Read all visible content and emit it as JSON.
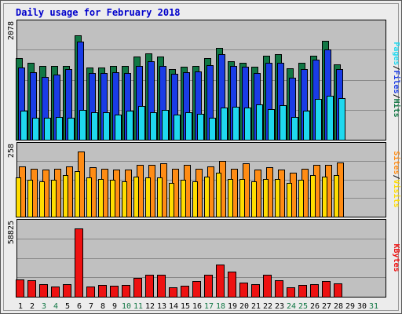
{
  "title": "Daily usage for February 2018",
  "colors": {
    "frame_bg": "#ececec",
    "plot_bg": "#c0c0c0",
    "title": "#0000cc",
    "hits": "#117744",
    "files": "#1a3ce6",
    "pages": "#1fd8ee",
    "visits": "#ff8c14",
    "sites": "#ffdd00",
    "kbytes": "#ee1111",
    "weekday_label": "#000000",
    "weekend_label": "#117744"
  },
  "chart_data": [
    {
      "type": "bar",
      "panel": "usage",
      "y_max_label": "2078",
      "ylabel_parts": [
        {
          "text": "Pages",
          "color_key": "pages"
        },
        {
          "text": "/",
          "color_key": "weekday_label"
        },
        {
          "text": "Files",
          "color_key": "files"
        },
        {
          "text": "/",
          "color_key": "weekday_label"
        },
        {
          "text": "Hits",
          "color_key": "hits"
        }
      ],
      "ylim": [
        0,
        2078
      ],
      "categories": [
        "1",
        "2",
        "3",
        "4",
        "5",
        "6",
        "7",
        "8",
        "9",
        "10",
        "11",
        "12",
        "13",
        "14",
        "15",
        "16",
        "17",
        "18",
        "19",
        "20",
        "21",
        "22",
        "23",
        "24",
        "25",
        "26",
        "27",
        "28"
      ],
      "series": [
        {
          "key": "hits",
          "values": [
            1540,
            1450,
            1380,
            1380,
            1380,
            1960,
            1350,
            1360,
            1390,
            1380,
            1560,
            1620,
            1560,
            1330,
            1370,
            1380,
            1530,
            1720,
            1470,
            1440,
            1370,
            1570,
            1610,
            1340,
            1450,
            1580,
            1850,
            1420
          ]
        },
        {
          "key": "files",
          "values": [
            1360,
            1270,
            1180,
            1220,
            1320,
            1840,
            1250,
            1250,
            1270,
            1250,
            1380,
            1470,
            1390,
            1240,
            1270,
            1280,
            1400,
            1600,
            1380,
            1370,
            1250,
            1440,
            1450,
            1170,
            1330,
            1500,
            1690,
            1330
          ]
        },
        {
          "key": "pages",
          "values": [
            540,
            420,
            410,
            430,
            420,
            560,
            510,
            510,
            470,
            540,
            630,
            510,
            560,
            470,
            510,
            480,
            420,
            600,
            620,
            600,
            660,
            580,
            650,
            430,
            540,
            760,
            830,
            780
          ]
        }
      ]
    },
    {
      "type": "bar",
      "panel": "visits",
      "y_max_label": "258",
      "ylabel_parts": [
        {
          "text": "Sites",
          "color_key": "visits"
        },
        {
          "text": "/",
          "color_key": "weekday_label"
        },
        {
          "text": "Visits",
          "color_key": "sites"
        }
      ],
      "ylim": [
        0,
        258
      ],
      "categories": [
        "1",
        "2",
        "3",
        "4",
        "5",
        "6",
        "7",
        "8",
        "9",
        "10",
        "11",
        "12",
        "13",
        "14",
        "15",
        "16",
        "17",
        "18",
        "19",
        "20",
        "21",
        "22",
        "23",
        "24",
        "25",
        "26",
        "27",
        "28"
      ],
      "series": [
        {
          "key": "visits",
          "values": [
            200,
            190,
            185,
            190,
            200,
            258,
            195,
            190,
            185,
            185,
            205,
            205,
            210,
            190,
            205,
            190,
            200,
            220,
            190,
            210,
            185,
            195,
            185,
            175,
            190,
            205,
            205,
            215
          ]
        },
        {
          "key": "sites",
          "values": [
            155,
            145,
            140,
            145,
            165,
            180,
            155,
            150,
            145,
            140,
            160,
            155,
            155,
            135,
            145,
            140,
            160,
            175,
            150,
            150,
            140,
            150,
            150,
            135,
            145,
            165,
            160,
            165
          ]
        }
      ]
    },
    {
      "type": "bar",
      "panel": "kbytes",
      "y_max_label": "58825",
      "ylabel_parts": [
        {
          "text": "KBytes",
          "color_key": "kbytes"
        }
      ],
      "ylim": [
        0,
        58825
      ],
      "categories": [
        "1",
        "2",
        "3",
        "4",
        "5",
        "6",
        "7",
        "8",
        "9",
        "10",
        "11",
        "12",
        "13",
        "14",
        "15",
        "16",
        "17",
        "18",
        "19",
        "20",
        "21",
        "22",
        "23",
        "24",
        "25",
        "26",
        "27",
        "28"
      ],
      "series": [
        {
          "key": "kbytes",
          "values": [
            15000,
            14000,
            11000,
            9000,
            11000,
            58825,
            8500,
            10200,
            9200,
            10300,
            16000,
            19100,
            18900,
            8400,
            9300,
            13200,
            19100,
            28000,
            21500,
            12000,
            10700,
            19100,
            14500,
            8100,
            10200,
            10500,
            13700,
            11800
          ]
        }
      ]
    }
  ],
  "x_labels": [
    {
      "day": "1",
      "weekend": false
    },
    {
      "day": "2",
      "weekend": false
    },
    {
      "day": "3",
      "weekend": true
    },
    {
      "day": "4",
      "weekend": true
    },
    {
      "day": "5",
      "weekend": false
    },
    {
      "day": "6",
      "weekend": false
    },
    {
      "day": "7",
      "weekend": false
    },
    {
      "day": "8",
      "weekend": false
    },
    {
      "day": "9",
      "weekend": false
    },
    {
      "day": "10",
      "weekend": true
    },
    {
      "day": "11",
      "weekend": true
    },
    {
      "day": "12",
      "weekend": false
    },
    {
      "day": "13",
      "weekend": false
    },
    {
      "day": "14",
      "weekend": false
    },
    {
      "day": "15",
      "weekend": false
    },
    {
      "day": "16",
      "weekend": false
    },
    {
      "day": "17",
      "weekend": true
    },
    {
      "day": "18",
      "weekend": true
    },
    {
      "day": "19",
      "weekend": false
    },
    {
      "day": "20",
      "weekend": false
    },
    {
      "day": "21",
      "weekend": false
    },
    {
      "day": "22",
      "weekend": false
    },
    {
      "day": "23",
      "weekend": false
    },
    {
      "day": "24",
      "weekend": true
    },
    {
      "day": "25",
      "weekend": true
    },
    {
      "day": "26",
      "weekend": false
    },
    {
      "day": "27",
      "weekend": false
    },
    {
      "day": "28",
      "weekend": false
    },
    {
      "day": "29",
      "weekend": false
    },
    {
      "day": "30",
      "weekend": false
    },
    {
      "day": "31",
      "weekend": true
    }
  ]
}
